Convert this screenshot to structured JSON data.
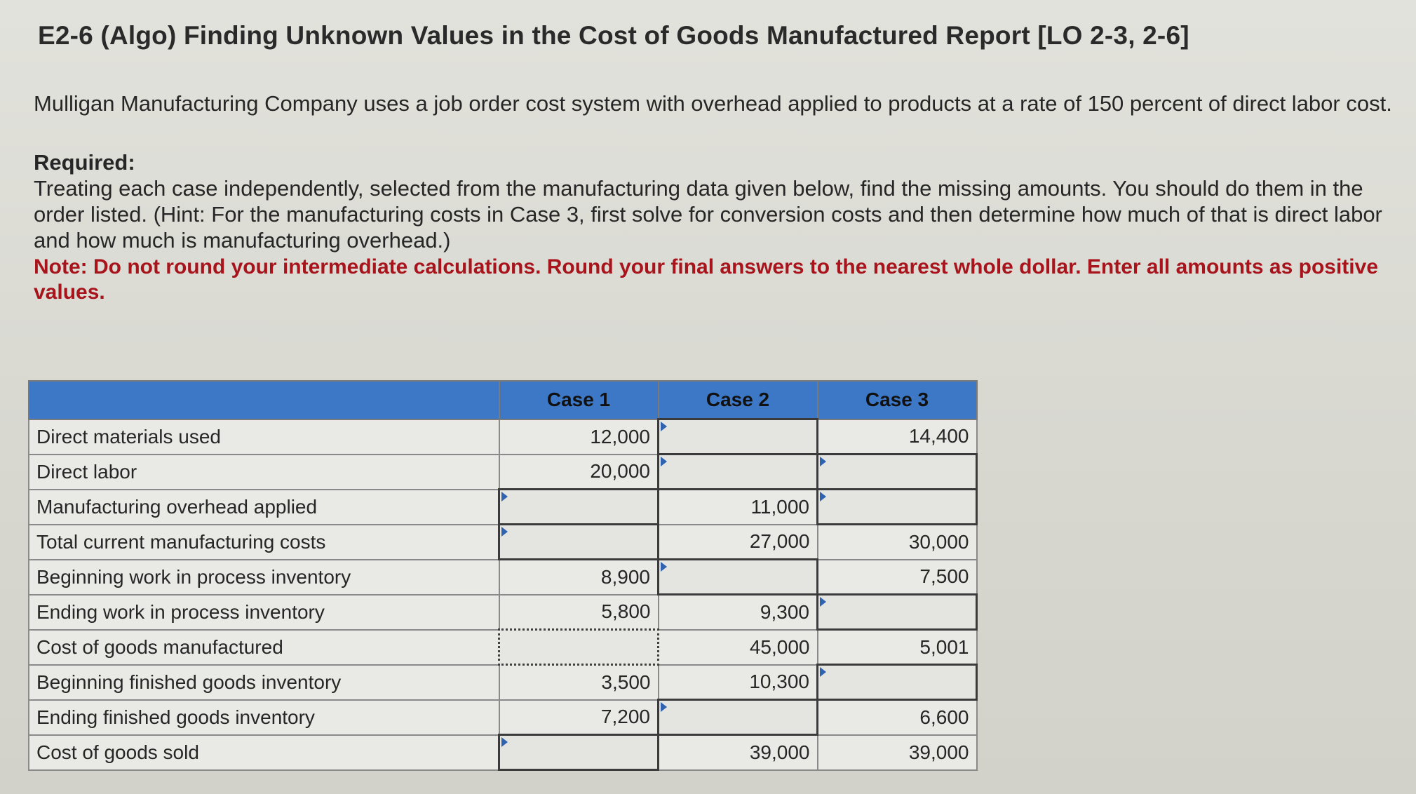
{
  "title": "E2-6 (Algo) Finding Unknown Values in the Cost of Goods Manufactured Report [LO 2-3, 2-6]",
  "intro": "Mulligan Manufacturing Company uses a job order cost system with overhead applied to products at a rate of 150 percent of direct labor cost.",
  "required_label": "Required:",
  "required_text": "Treating each case independently, selected from the manufacturing data given below, find the missing amounts. You should do them in the order listed. (Hint: For the manufacturing costs in Case 3, first solve for conversion costs and then determine how much of that is direct labor and how much is manufacturing overhead.)",
  "note": "Note: Do not round your intermediate calculations. Round your final answers to the nearest whole dollar. Enter all amounts as positive values.",
  "table": {
    "headers": [
      "",
      "Case 1",
      "Case 2",
      "Case 3"
    ],
    "rows": [
      {
        "label": "Direct materials used",
        "case1": "12,000",
        "case2": "",
        "case3": "14,400"
      },
      {
        "label": "Direct labor",
        "case1": "20,000",
        "case2": "",
        "case3": ""
      },
      {
        "label": "Manufacturing overhead applied",
        "case1": "",
        "case2": "11,000",
        "case3": ""
      },
      {
        "label": "Total current manufacturing costs",
        "case1": "",
        "case2": "27,000",
        "case3": "30,000"
      },
      {
        "label": "Beginning work in process inventory",
        "case1": "8,900",
        "case2": "",
        "case3": "7,500"
      },
      {
        "label": "Ending work in process inventory",
        "case1": "5,800",
        "case2": "9,300",
        "case3": ""
      },
      {
        "label": "Cost of goods manufactured",
        "case1": "",
        "case2": "45,000",
        "case3": "5,001"
      },
      {
        "label": "Beginning finished goods inventory",
        "case1": "3,500",
        "case2": "10,300",
        "case3": ""
      },
      {
        "label": "Ending finished goods inventory",
        "case1": "7,200",
        "case2": "",
        "case3": "6,600"
      },
      {
        "label": "Cost of goods sold",
        "case1": "",
        "case2": "39,000",
        "case3": "39,000"
      }
    ]
  },
  "colors": {
    "header_blue": "#3d78c6",
    "note_red": "#a8141c",
    "input_marker": "#2f63b0"
  }
}
